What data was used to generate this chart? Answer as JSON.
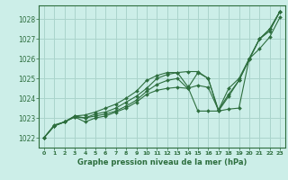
{
  "title": "Graphe pression niveau de la mer (hPa)",
  "bg_color": "#cceee8",
  "grid_color": "#aad4cc",
  "line_color": "#2d6e3e",
  "ylim": [
    1021.5,
    1028.7
  ],
  "xlim": [
    -0.5,
    23.5
  ],
  "yticks": [
    1022,
    1023,
    1024,
    1025,
    1026,
    1027,
    1028
  ],
  "xticks": [
    0,
    1,
    2,
    3,
    4,
    5,
    6,
    7,
    8,
    9,
    10,
    11,
    12,
    13,
    14,
    15,
    16,
    17,
    18,
    19,
    20,
    21,
    22,
    23
  ],
  "series": [
    {
      "x": [
        0,
        1,
        2,
        3,
        4,
        5,
        6,
        7,
        8,
        9,
        10,
        11,
        12,
        13,
        14,
        15,
        16,
        17,
        18,
        19,
        20,
        21,
        22,
        23
      ],
      "y": [
        1022.0,
        1022.6,
        1022.8,
        1023.1,
        1023.0,
        1023.2,
        1023.3,
        1023.5,
        1023.8,
        1024.1,
        1024.5,
        1025.0,
        1025.2,
        1025.3,
        1024.6,
        1023.35,
        1023.35,
        1023.35,
        1024.1,
        1024.9,
        1026.0,
        1027.0,
        1027.4,
        1028.4
      ]
    },
    {
      "x": [
        0,
        1,
        2,
        3,
        4,
        5,
        6,
        7,
        8,
        9,
        10,
        11,
        12,
        13,
        14,
        15,
        16,
        17,
        18,
        19,
        20,
        21,
        22,
        23
      ],
      "y": [
        1022.0,
        1022.6,
        1022.8,
        1023.1,
        1023.15,
        1023.3,
        1023.5,
        1023.7,
        1024.0,
        1024.35,
        1024.9,
        1025.15,
        1025.3,
        1025.3,
        1025.35,
        1025.35,
        1025.0,
        1023.35,
        1023.45,
        1023.5,
        1026.0,
        1027.0,
        1027.5,
        1028.4
      ]
    },
    {
      "x": [
        0,
        1,
        2,
        3,
        4,
        5,
        6,
        7,
        8,
        9,
        10,
        11,
        12,
        13,
        14,
        15,
        16,
        17,
        18,
        19,
        20,
        21,
        22,
        23
      ],
      "y": [
        1022.0,
        1022.6,
        1022.8,
        1023.05,
        1022.8,
        1023.0,
        1023.1,
        1023.3,
        1023.5,
        1023.8,
        1024.2,
        1024.4,
        1024.5,
        1024.55,
        1024.5,
        1025.3,
        1025.0,
        1023.4,
        1024.5,
        1025.0,
        1026.0,
        1026.5,
        1027.1,
        1028.1
      ]
    },
    {
      "x": [
        0,
        1,
        2,
        3,
        4,
        5,
        6,
        7,
        8,
        9,
        10,
        11,
        12,
        13,
        14,
        15,
        16,
        17,
        18,
        19,
        20,
        21,
        22,
        23
      ],
      "y": [
        1022.0,
        1022.65,
        1022.8,
        1023.05,
        1023.0,
        1023.1,
        1023.2,
        1023.35,
        1023.6,
        1023.9,
        1024.35,
        1024.7,
        1024.9,
        1025.0,
        1024.5,
        1024.65,
        1024.55,
        1023.4,
        1024.2,
        1024.9,
        1025.95,
        1027.0,
        1027.5,
        1028.4
      ]
    }
  ]
}
